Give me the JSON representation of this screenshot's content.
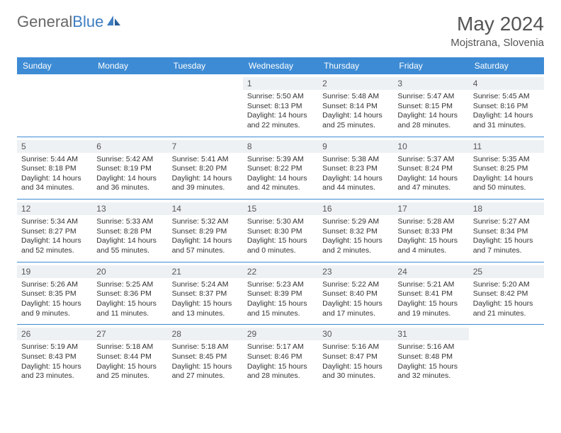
{
  "brand": {
    "part1": "General",
    "part2": "Blue"
  },
  "title": "May 2024",
  "location": "Mojstrana, Slovenia",
  "colors": {
    "header_bg": "#3d8bd4",
    "header_text": "#ffffff",
    "daynum_bg": "#eef1f4",
    "border": "#3d8bd4",
    "brand_blue": "#3d7ec1",
    "text": "#333333"
  },
  "day_names": [
    "Sunday",
    "Monday",
    "Tuesday",
    "Wednesday",
    "Thursday",
    "Friday",
    "Saturday"
  ],
  "labels": {
    "sunrise": "Sunrise:",
    "sunset": "Sunset:",
    "daylight": "Daylight:"
  },
  "weeks": [
    [
      null,
      null,
      null,
      {
        "n": "1",
        "sr": "5:50 AM",
        "ss": "8:13 PM",
        "dl": "14 hours and 22 minutes."
      },
      {
        "n": "2",
        "sr": "5:48 AM",
        "ss": "8:14 PM",
        "dl": "14 hours and 25 minutes."
      },
      {
        "n": "3",
        "sr": "5:47 AM",
        "ss": "8:15 PM",
        "dl": "14 hours and 28 minutes."
      },
      {
        "n": "4",
        "sr": "5:45 AM",
        "ss": "8:16 PM",
        "dl": "14 hours and 31 minutes."
      }
    ],
    [
      {
        "n": "5",
        "sr": "5:44 AM",
        "ss": "8:18 PM",
        "dl": "14 hours and 34 minutes."
      },
      {
        "n": "6",
        "sr": "5:42 AM",
        "ss": "8:19 PM",
        "dl": "14 hours and 36 minutes."
      },
      {
        "n": "7",
        "sr": "5:41 AM",
        "ss": "8:20 PM",
        "dl": "14 hours and 39 minutes."
      },
      {
        "n": "8",
        "sr": "5:39 AM",
        "ss": "8:22 PM",
        "dl": "14 hours and 42 minutes."
      },
      {
        "n": "9",
        "sr": "5:38 AM",
        "ss": "8:23 PM",
        "dl": "14 hours and 44 minutes."
      },
      {
        "n": "10",
        "sr": "5:37 AM",
        "ss": "8:24 PM",
        "dl": "14 hours and 47 minutes."
      },
      {
        "n": "11",
        "sr": "5:35 AM",
        "ss": "8:25 PM",
        "dl": "14 hours and 50 minutes."
      }
    ],
    [
      {
        "n": "12",
        "sr": "5:34 AM",
        "ss": "8:27 PM",
        "dl": "14 hours and 52 minutes."
      },
      {
        "n": "13",
        "sr": "5:33 AM",
        "ss": "8:28 PM",
        "dl": "14 hours and 55 minutes."
      },
      {
        "n": "14",
        "sr": "5:32 AM",
        "ss": "8:29 PM",
        "dl": "14 hours and 57 minutes."
      },
      {
        "n": "15",
        "sr": "5:30 AM",
        "ss": "8:30 PM",
        "dl": "15 hours and 0 minutes."
      },
      {
        "n": "16",
        "sr": "5:29 AM",
        "ss": "8:32 PM",
        "dl": "15 hours and 2 minutes."
      },
      {
        "n": "17",
        "sr": "5:28 AM",
        "ss": "8:33 PM",
        "dl": "15 hours and 4 minutes."
      },
      {
        "n": "18",
        "sr": "5:27 AM",
        "ss": "8:34 PM",
        "dl": "15 hours and 7 minutes."
      }
    ],
    [
      {
        "n": "19",
        "sr": "5:26 AM",
        "ss": "8:35 PM",
        "dl": "15 hours and 9 minutes."
      },
      {
        "n": "20",
        "sr": "5:25 AM",
        "ss": "8:36 PM",
        "dl": "15 hours and 11 minutes."
      },
      {
        "n": "21",
        "sr": "5:24 AM",
        "ss": "8:37 PM",
        "dl": "15 hours and 13 minutes."
      },
      {
        "n": "22",
        "sr": "5:23 AM",
        "ss": "8:39 PM",
        "dl": "15 hours and 15 minutes."
      },
      {
        "n": "23",
        "sr": "5:22 AM",
        "ss": "8:40 PM",
        "dl": "15 hours and 17 minutes."
      },
      {
        "n": "24",
        "sr": "5:21 AM",
        "ss": "8:41 PM",
        "dl": "15 hours and 19 minutes."
      },
      {
        "n": "25",
        "sr": "5:20 AM",
        "ss": "8:42 PM",
        "dl": "15 hours and 21 minutes."
      }
    ],
    [
      {
        "n": "26",
        "sr": "5:19 AM",
        "ss": "8:43 PM",
        "dl": "15 hours and 23 minutes."
      },
      {
        "n": "27",
        "sr": "5:18 AM",
        "ss": "8:44 PM",
        "dl": "15 hours and 25 minutes."
      },
      {
        "n": "28",
        "sr": "5:18 AM",
        "ss": "8:45 PM",
        "dl": "15 hours and 27 minutes."
      },
      {
        "n": "29",
        "sr": "5:17 AM",
        "ss": "8:46 PM",
        "dl": "15 hours and 28 minutes."
      },
      {
        "n": "30",
        "sr": "5:16 AM",
        "ss": "8:47 PM",
        "dl": "15 hours and 30 minutes."
      },
      {
        "n": "31",
        "sr": "5:16 AM",
        "ss": "8:48 PM",
        "dl": "15 hours and 32 minutes."
      },
      null
    ]
  ]
}
